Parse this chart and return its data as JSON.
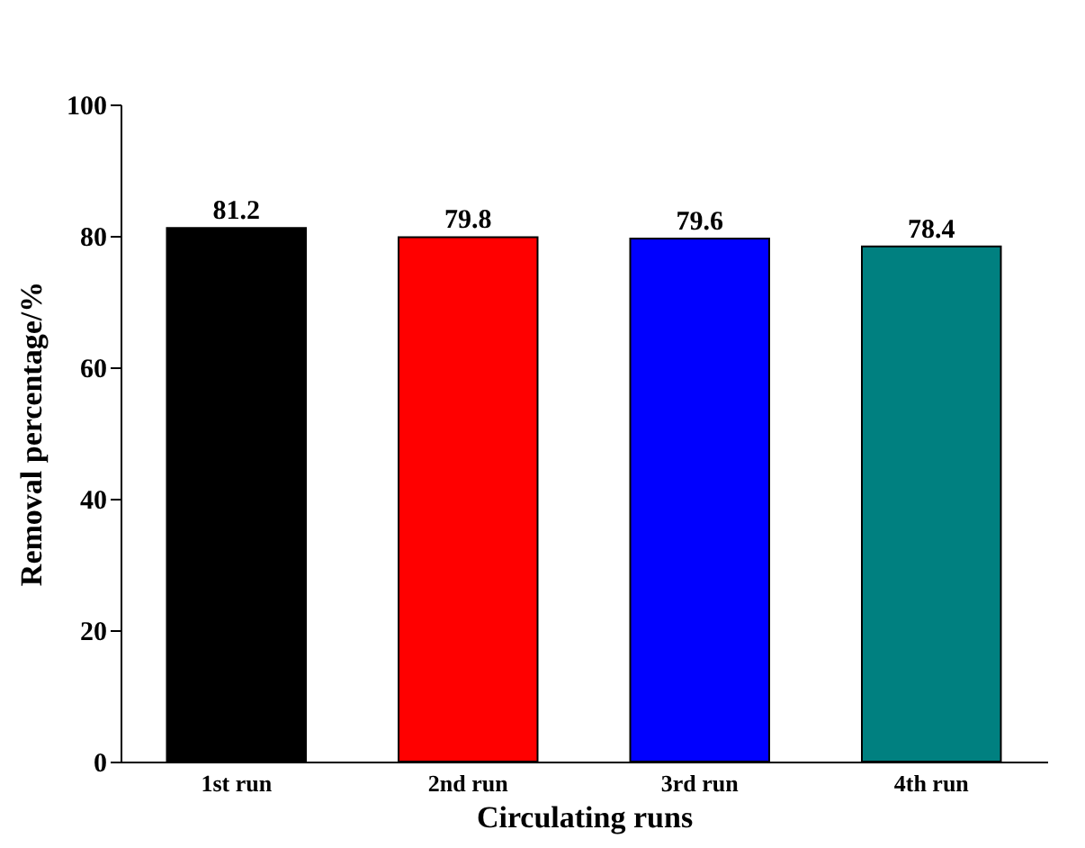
{
  "chart_data": {
    "type": "bar",
    "categories": [
      "1st run",
      "2nd run",
      "3rd run",
      "4th run"
    ],
    "values": [
      81.2,
      79.8,
      79.6,
      78.4
    ],
    "colors": [
      "#000000",
      "#ff0000",
      "#0000ff",
      "#008080"
    ],
    "xlabel": "Circulating runs",
    "ylabel": "Removal percentage/%",
    "ylim": [
      0,
      100
    ],
    "yticks": [
      0,
      20,
      40,
      60,
      80,
      100
    ],
    "data_labels": true
  }
}
